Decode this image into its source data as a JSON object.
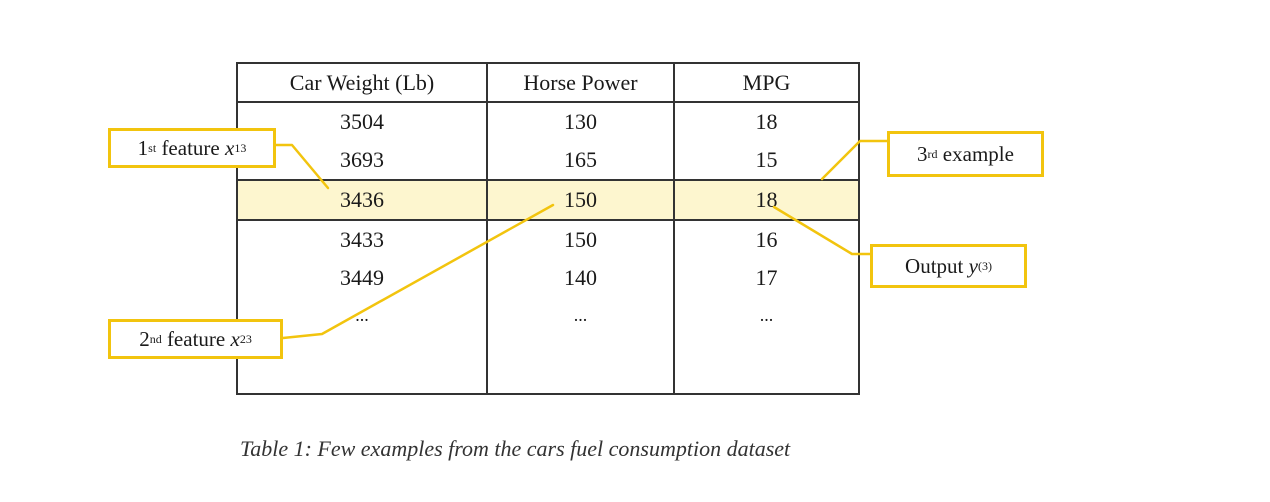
{
  "table": {
    "headers": [
      "Car Weight (Lb)",
      "Horse Power",
      "MPG"
    ],
    "rows": [
      [
        "3504",
        "130",
        "18"
      ],
      [
        "3693",
        "165",
        "15"
      ],
      [
        "3436",
        "150",
        "18"
      ],
      [
        "3433",
        "150",
        "16"
      ],
      [
        "3449",
        "140",
        "17"
      ],
      [
        "...",
        "...",
        "..."
      ]
    ],
    "highlighted_row": 3
  },
  "callouts": {
    "first_feature": {
      "ordinal": "1",
      "ordinal_suffix": "st",
      "text": "feature",
      "var": "x",
      "sub": "1",
      "sup": "3"
    },
    "second_feature": {
      "ordinal": "2",
      "ordinal_suffix": "nd",
      "text": "feature",
      "var": "x",
      "sub": "2",
      "sup": "3"
    },
    "third_example": {
      "ordinal": "3",
      "ordinal_suffix": "rd",
      "text": "example"
    },
    "output": {
      "text": "Output",
      "var": "y",
      "sup": "(3)"
    }
  },
  "caption": "Table 1: Few examples from the cars fuel consumption dataset",
  "colors": {
    "callout_border": "#f2c40e",
    "highlight_fill": "#fdf6cf",
    "table_border": "#333333"
  }
}
